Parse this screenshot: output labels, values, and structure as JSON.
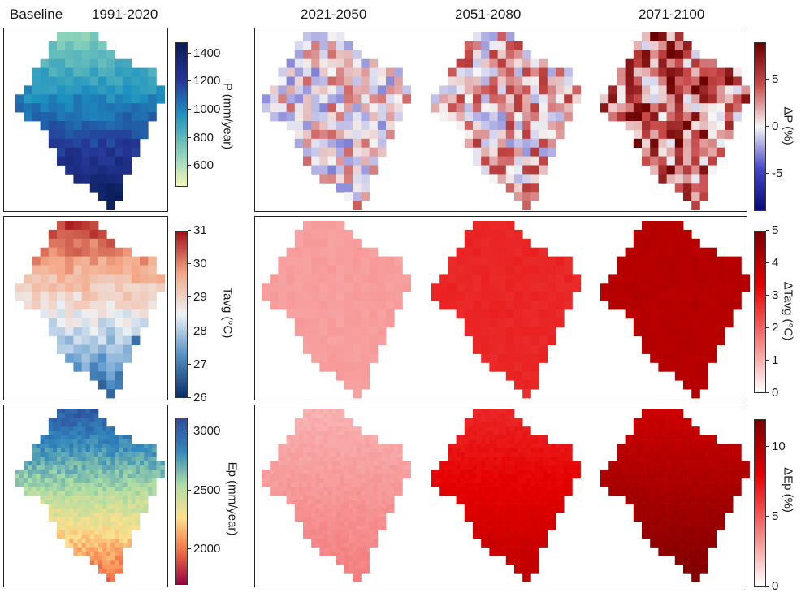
{
  "titles": {
    "baseline": "Baseline",
    "baseline_period": "1991-2020",
    "p1": "2021-2050",
    "p2": "2051-2080",
    "p3": "2071-2100"
  },
  "colorbars": {
    "P": {
      "label": "P (mm/year)",
      "ticks": [
        "1400",
        "1200",
        "1000",
        "800",
        "600"
      ],
      "values": [
        1400,
        1200,
        1000,
        800,
        600
      ],
      "range": [
        450,
        1480
      ],
      "colors": [
        "#f1f8b5",
        "#7fcdbb",
        "#1d91c0",
        "#253494",
        "#081d58"
      ]
    },
    "dP": {
      "label": "ΔP (%)",
      "ticks": [
        "5",
        "0",
        "-5"
      ],
      "values": [
        5,
        0,
        -5
      ],
      "range": [
        -9,
        9
      ],
      "colors": [
        "#08087a",
        "#4646c8",
        "#f5f5f5",
        "#c94a4a",
        "#6b0000"
      ]
    },
    "T": {
      "label": "Tavg (°C)",
      "ticks": [
        "31",
        "30",
        "29",
        "28",
        "27",
        "26"
      ],
      "values": [
        31,
        30,
        29,
        28,
        27,
        26
      ],
      "range": [
        26,
        31
      ],
      "colors": [
        "#08306b",
        "#4f8fc7",
        "#eef1f4",
        "#f4a582",
        "#a50f15"
      ]
    },
    "dT": {
      "label": "ΔTavg (°C)",
      "ticks": [
        "5",
        "4",
        "3",
        "2",
        "1",
        "0"
      ],
      "values": [
        5,
        4,
        3,
        2,
        1,
        0
      ],
      "range": [
        0,
        5
      ],
      "colors": [
        "#ffffff",
        "#f47b7b",
        "#e60000",
        "#7a0000"
      ]
    },
    "Ep": {
      "label": "Ep (mm/year)",
      "ticks": [
        "3000",
        "2500",
        "2000"
      ],
      "values": [
        3000,
        2500,
        2000
      ],
      "range": [
        1700,
        3120
      ],
      "colors": [
        "#9e0142",
        "#f46d43",
        "#fee08b",
        "#abdda4",
        "#3288bd",
        "#2c4c9c"
      ]
    },
    "dEp": {
      "label": "ΔEp (%)",
      "ticks": [
        "10",
        "5",
        "0"
      ],
      "values": [
        10,
        5,
        0
      ],
      "range": [
        0,
        12
      ],
      "colors": [
        "#ffffff",
        "#f47b7b",
        "#e60000",
        "#7a0000"
      ]
    }
  },
  "chart_data": {
    "type": "heatmap",
    "rows": [
      "P",
      "Tavg",
      "Ep"
    ],
    "columns": [
      "1991-2020",
      "2021-2050",
      "2051-2080",
      "2071-2100"
    ],
    "panels": [
      {
        "row": "P",
        "period": "1991-2020",
        "variable": "P (mm/year)",
        "range": [
          500,
          1400
        ],
        "mean": 1050
      },
      {
        "row": "P",
        "period": "2021-2050",
        "variable": "ΔP (%)",
        "range": [
          -8,
          8
        ],
        "mean": 1
      },
      {
        "row": "P",
        "period": "2051-2080",
        "variable": "ΔP (%)",
        "range": [
          -8,
          8
        ],
        "mean": 2
      },
      {
        "row": "P",
        "period": "2071-2100",
        "variable": "ΔP (%)",
        "range": [
          -8,
          8
        ],
        "mean": 5
      },
      {
        "row": "Tavg",
        "period": "1991-2020",
        "variable": "Tavg (°C)",
        "range": [
          26,
          31
        ],
        "mean": 28.3
      },
      {
        "row": "Tavg",
        "period": "2021-2050",
        "variable": "ΔTavg (°C)",
        "range": [
          0,
          5
        ],
        "mean": 1.2
      },
      {
        "row": "Tavg",
        "period": "2051-2080",
        "variable": "ΔTavg (°C)",
        "range": [
          0,
          5
        ],
        "mean": 2.7
      },
      {
        "row": "Tavg",
        "period": "2071-2100",
        "variable": "ΔTavg (°C)",
        "range": [
          0,
          5
        ],
        "mean": 4.0
      },
      {
        "row": "Ep",
        "period": "1991-2020",
        "variable": "Ep (mm/year)",
        "range": [
          1800,
          3100
        ],
        "mean": 2500
      },
      {
        "row": "Ep",
        "period": "2021-2050",
        "variable": "ΔEp (%)",
        "range": [
          0,
          12
        ],
        "mean": 2.5
      },
      {
        "row": "Ep",
        "period": "2051-2080",
        "variable": "ΔEp (%)",
        "range": [
          0,
          12
        ],
        "mean": 7
      },
      {
        "row": "Ep",
        "period": "2071-2100",
        "variable": "ΔEp (%)",
        "range": [
          0,
          12
        ],
        "mean": 9.5
      }
    ]
  }
}
